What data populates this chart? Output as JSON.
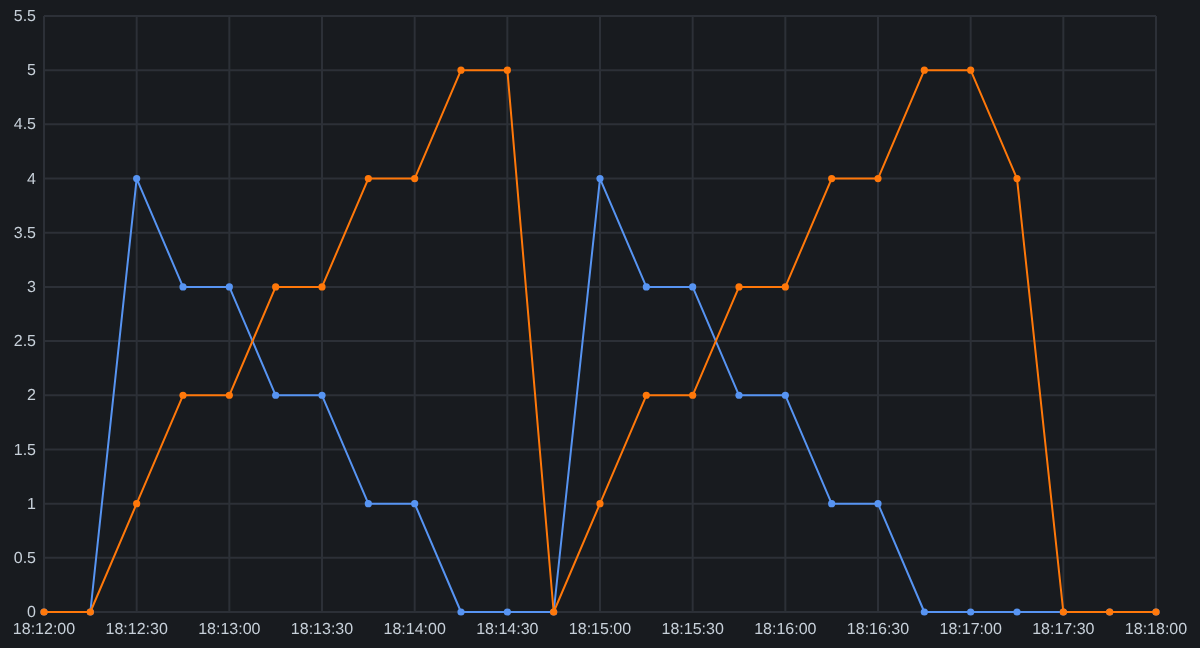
{
  "chart_data": {
    "type": "line",
    "x": [
      18.2,
      18.2041667,
      18.2083333,
      18.2125,
      18.2166667,
      18.2208333,
      18.225,
      18.2291667,
      18.2333333,
      18.2375,
      18.2416667,
      18.2458333,
      18.25,
      18.2541667,
      18.2583333,
      18.2625,
      18.2666667,
      18.2708333,
      18.275,
      18.2791667,
      18.2833333,
      18.2875,
      18.2916667,
      18.2958333,
      18.3
    ],
    "series": [
      {
        "color": "#5794f2",
        "values": [
          0,
          0,
          4,
          3,
          3,
          2,
          2,
          1,
          1,
          0,
          0,
          0,
          4,
          3,
          3,
          2,
          2,
          1,
          1,
          0,
          0,
          0,
          0,
          0,
          0
        ]
      },
      {
        "color": "#ff780a",
        "values": [
          0,
          0,
          1,
          2,
          2,
          3,
          3,
          4,
          4,
          5,
          5,
          0,
          1,
          2,
          2,
          3,
          3,
          4,
          4,
          5,
          5,
          4,
          0,
          0,
          0
        ]
      }
    ],
    "xlim": [
      18.2,
      18.3
    ],
    "xticks": [
      {
        "value": 18.2,
        "label": "18:12:00"
      },
      {
        "value": 18.2083333,
        "label": "18:12:30"
      },
      {
        "value": 18.2166667,
        "label": "18:13:00"
      },
      {
        "value": 18.225,
        "label": "18:13:30"
      },
      {
        "value": 18.2333333,
        "label": "18:14:00"
      },
      {
        "value": 18.2416667,
        "label": "18:14:30"
      },
      {
        "value": 18.25,
        "label": "18:15:00"
      },
      {
        "value": 18.2583333,
        "label": "18:15:30"
      },
      {
        "value": 18.2666667,
        "label": "18:16:00"
      },
      {
        "value": 18.275,
        "label": "18:16:30"
      },
      {
        "value": 18.2833333,
        "label": "18:17:00"
      },
      {
        "value": 18.2916667,
        "label": "18:17:30"
      },
      {
        "value": 18.3,
        "label": "18:18:00"
      }
    ],
    "ylim": [
      0,
      5.5
    ],
    "yticks": [
      0,
      0.5,
      1,
      1.5,
      2,
      2.5,
      3,
      3.5,
      4,
      4.5,
      5,
      5.5
    ],
    "grid": true,
    "marker": "circle",
    "line_style": "solid"
  }
}
